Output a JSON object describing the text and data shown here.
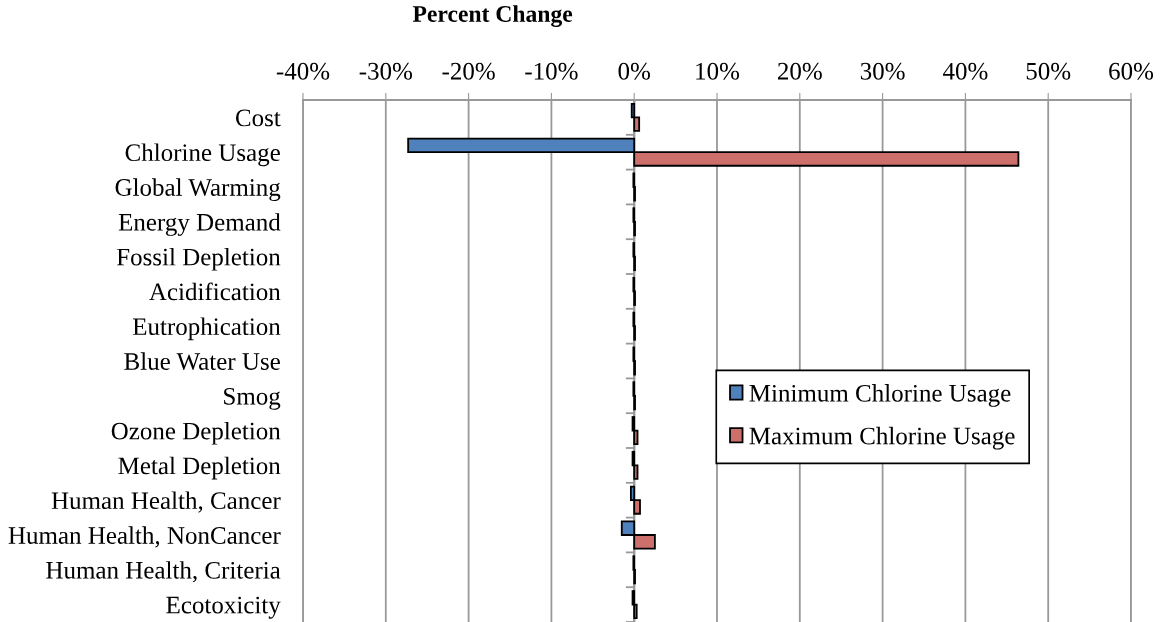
{
  "chart_data": {
    "type": "bar",
    "orientation": "horizontal",
    "xlabel": "Percent Change",
    "categories": [
      "Cost",
      "Chlorine Usage",
      "Global Warming",
      "Energy Demand",
      "Fossil Depletion",
      "Acidification",
      "Eutrophication",
      "Blue Water Use",
      "Smog",
      "Ozone Depletion",
      "Metal Depletion",
      "Human Health, Cancer",
      "Human Health, NonCancer",
      "Human Health, Criteria",
      "Ecotoxicity"
    ],
    "series": [
      {
        "name": "Minimum Chlorine Usage",
        "color": "#4f81bd",
        "values": [
          -0.3,
          -27.3,
          -0.1,
          -0.1,
          -0.1,
          -0.1,
          -0.1,
          -0.1,
          -0.1,
          -0.2,
          -0.2,
          -0.4,
          -1.5,
          -0.1,
          -0.2
        ]
      },
      {
        "name": "Maximum Chlorine Usage",
        "color": "#cd6f6b",
        "values": [
          0.6,
          46.4,
          0.1,
          0.1,
          0.1,
          0.1,
          0.1,
          0.1,
          0.1,
          0.4,
          0.4,
          0.7,
          2.5,
          0.1,
          0.3
        ]
      }
    ],
    "xlim": [
      -40,
      60
    ],
    "xticks": [
      {
        "value": -40,
        "label": "-40%"
      },
      {
        "value": -30,
        "label": "-30%"
      },
      {
        "value": -20,
        "label": "-20%"
      },
      {
        "value": -10,
        "label": "-10%"
      },
      {
        "value": 0,
        "label": "0%"
      },
      {
        "value": 10,
        "label": "10%"
      },
      {
        "value": 20,
        "label": "20%"
      },
      {
        "value": 30,
        "label": "30%"
      },
      {
        "value": 40,
        "label": "40%"
      },
      {
        "value": 50,
        "label": "50%"
      },
      {
        "value": 60,
        "label": "60%"
      }
    ],
    "grid": "x",
    "legend": "center right"
  }
}
